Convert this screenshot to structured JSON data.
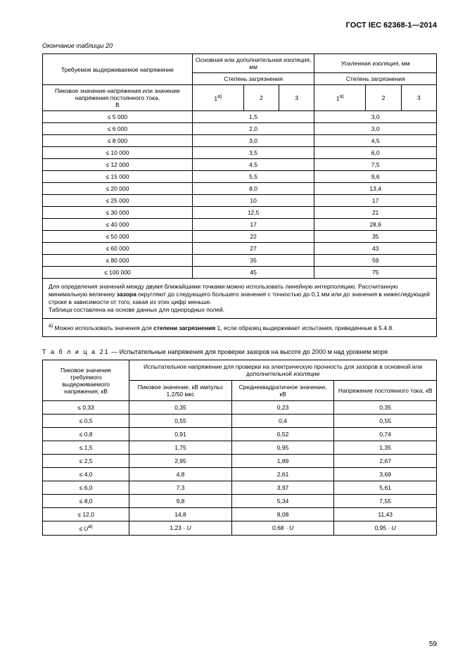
{
  "doc_header": "ГОСТ IEC 62368-1—2014",
  "t20_caption": "Окончание таблицы 20",
  "t20": {
    "h_col1": "Требуемое выдерживаемое напряжение",
    "h_col2": "Основная или дополнительная изоляция, мм",
    "h_col3": "Усиленная изоляция, мм",
    "h_sub1": "Пиковое значение напряжения или значение напряжения постоянного тока,\nВ",
    "h_pollution": "Степень загрязнения",
    "h_p1": "1",
    "h_p1_sup": "a)",
    "h_p2": "2",
    "h_p3": "3",
    "rows": [
      {
        "v": "≤ 5 000",
        "a": "1,5",
        "b": "3,0"
      },
      {
        "v": "≤ 6 000",
        "a": "2,0",
        "b": "3,0"
      },
      {
        "v": "≤ 8 000",
        "a": "3,0",
        "b": "4,5"
      },
      {
        "v": "≤ 10 000",
        "a": "3,5",
        "b": "6,0"
      },
      {
        "v": "≤ 12 000",
        "a": "4,5",
        "b": "7,5"
      },
      {
        "v": "≤ 15 000",
        "a": "5,5",
        "b": "9,6"
      },
      {
        "v": "≤ 20 000",
        "a": "8,0",
        "b": "13,4"
      },
      {
        "v": "≤ 25 000",
        "a": "10",
        "b": "17"
      },
      {
        "v": "≤ 30 000",
        "a": "12,5",
        "b": "21"
      },
      {
        "v": "≤ 40 000",
        "a": "17",
        "b": "28,6"
      },
      {
        "v": "≤ 50 000",
        "a": "22",
        "b": "35"
      },
      {
        "v": "≤ 60 000",
        "a": "27",
        "b": "43"
      },
      {
        "v": "≤ 80 000",
        "a": "35",
        "b": "59"
      },
      {
        "v": "≤ 100 000",
        "a": "45",
        "b": "75"
      }
    ],
    "note1_a": "Для определения значений между двумя ближайшими точками можно использовать линейную интерполяцию. Рассчитанную минимальную величину ",
    "note1_b": "зазора",
    "note1_c": " округляют до следующего большего значения с точностью до 0,1 мм или до значения в нижеследующей строке в зависимости от того, какая из этих цифр меньше.",
    "note1_d": "Таблица составлена на основе данных для однородных полей.",
    "note2_sup": "a)",
    "note2_a": " Можно использовать значения для ",
    "note2_b": "степени загрязнения",
    "note2_c": " 1, если образец выдерживает испытания, приведенные в  5.4.8."
  },
  "t21_title_a": "Т а б л и ц а   21",
  "t21_title_b": " —  Испытательные напряжения для проверки зазоров на высоте до 2000 м над уровнем моря",
  "t21": {
    "h_col1": "Пиковое значение требуемого выдерживаемого напряжения, кВ",
    "h_main": "Испытательное напряжение для проверки на электрическую прочность для зазоров в основной или дополнительной изоляции",
    "h_sub1": "Пиковое значение, кВ импульс 1,2/50 мкс",
    "h_sub2": "Среднеквадратичное значение, кВ",
    "h_sub3": "Напряжение постоянного тока, кВ",
    "rows": [
      {
        "v": "≤ 0,33",
        "a": "0,35",
        "b": "0,23",
        "c": "0,35"
      },
      {
        "v": "≤ 0,5",
        "a": "0,55",
        "b": "0,4",
        "c": "0,55"
      },
      {
        "v": "≤ 0,8",
        "a": "0,91",
        "b": "0,52",
        "c": "0,74"
      },
      {
        "v": "≤ 1,5",
        "a": "1,75",
        "b": "0,95",
        "c": "1,35"
      },
      {
        "v": "≤ 2,5",
        "a": "2,95",
        "b": "1,89",
        "c": "2,67"
      },
      {
        "v": "≤ 4,0",
        "a": "4,8",
        "b": "2,61",
        "c": "3,69"
      },
      {
        "v": "≤ 6,0",
        "a": "7,3",
        "b": "3,97",
        "c": "5,61"
      },
      {
        "v": "≤ 8,0",
        "a": "9,8",
        "b": "5,34",
        "c": "7,55"
      },
      {
        "v": "≤ 12,0",
        "a": "14,8",
        "b": "8,08",
        "c": "11,43"
      }
    ],
    "last_row": {
      "v_pre": "≤ ",
      "v_i": "U",
      "v_sup": "a)",
      "a_pre": "1,23 · ",
      "a_i": "U",
      "b_pre": "0,68 · ",
      "b_i": "U",
      "c_pre": "0,95 · ",
      "c_i": "U"
    }
  },
  "page_number": "59"
}
